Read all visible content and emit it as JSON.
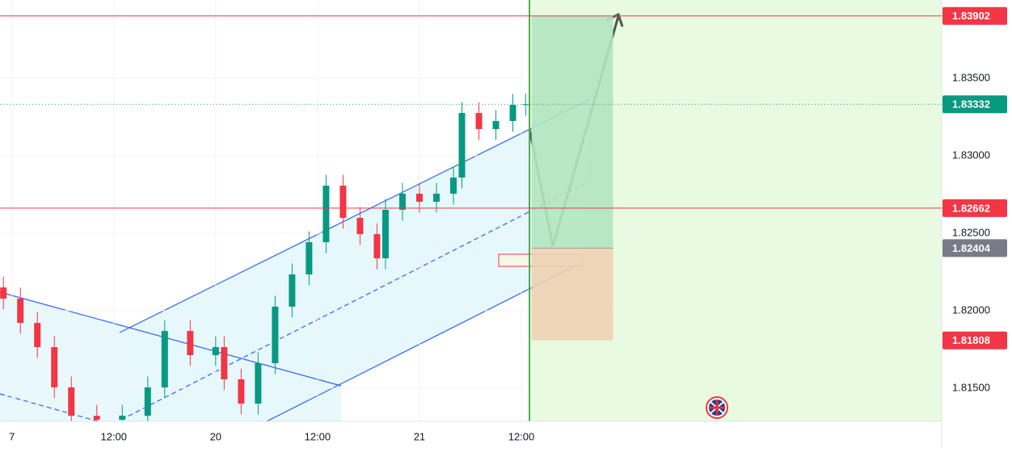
{
  "chart_data": {
    "type": "candlestick",
    "x": [
      -25,
      -23,
      -21,
      -19,
      -17,
      -14,
      -11,
      -8,
      -6,
      -3,
      0,
      1,
      3,
      5,
      7,
      9,
      11,
      13,
      15,
      17,
      19,
      20,
      22,
      24,
      26,
      28,
      29,
      31,
      33,
      35,
      36.5
    ],
    "open": [
      1.8215,
      1.82078,
      1.81921,
      1.81765,
      1.81505,
      1.81322,
      1.81296,
      1.81322,
      1.81505,
      1.81869,
      1.81713,
      1.81765,
      1.81557,
      1.814,
      1.81661,
      1.82026,
      1.82234,
      1.82442,
      1.82807,
      1.82599,
      1.82494,
      1.82338,
      1.82651,
      1.82755,
      1.82703,
      1.82755,
      1.82859,
      1.83276,
      1.83172,
      1.83224,
      1.83328
    ],
    "high": [
      1.8222,
      1.82148,
      1.81991,
      1.81835,
      1.81575,
      1.81392,
      1.81392,
      1.81575,
      1.81939,
      1.81939,
      1.81835,
      1.81835,
      1.81627,
      1.81731,
      1.82096,
      1.82304,
      1.82512,
      1.82877,
      1.82877,
      1.82669,
      1.82564,
      1.82721,
      1.82825,
      1.82825,
      1.82825,
      1.82929,
      1.83346,
      1.83346,
      1.83294,
      1.83398,
      1.83402
    ],
    "low": [
      1.82008,
      1.81851,
      1.81695,
      1.81435,
      1.81252,
      1.81226,
      1.81226,
      1.81252,
      1.81435,
      1.81643,
      1.81643,
      1.81487,
      1.8133,
      1.8133,
      1.81591,
      1.81956,
      1.82164,
      1.82372,
      1.82529,
      1.82424,
      1.82268,
      1.82268,
      1.82581,
      1.82633,
      1.82633,
      1.82685,
      1.82789,
      1.83102,
      1.83102,
      1.83154,
      1.83258
    ],
    "close": [
      1.82078,
      1.81921,
      1.81765,
      1.81505,
      1.81322,
      1.81296,
      1.81322,
      1.81505,
      1.81869,
      1.81713,
      1.81765,
      1.81557,
      1.814,
      1.81661,
      1.82026,
      1.82234,
      1.82442,
      1.82807,
      1.82599,
      1.82494,
      1.82338,
      1.82651,
      1.82755,
      1.82703,
      1.82755,
      1.82859,
      1.83276,
      1.83172,
      1.83224,
      1.83328,
      1.83332
    ],
    "up_color": "#089981",
    "down_color": "#f23645",
    "xlim": [
      -25.4,
      85.5
    ],
    "xticks": [
      {
        "value": -24,
        "label": "7"
      },
      {
        "value": -12,
        "label": "12:00"
      },
      {
        "value": 0,
        "label": "20"
      },
      {
        "value": 12,
        "label": "12:00"
      },
      {
        "value": 24,
        "label": "21"
      },
      {
        "value": 36,
        "label": "12:00"
      }
    ],
    "ylim": [
      1.81286,
      1.84005
    ],
    "yticks": [
      {
        "value": 1.815,
        "label": "1.81500"
      },
      {
        "value": 1.82,
        "label": "1.82000"
      },
      {
        "value": 1.825,
        "label": "1.82500"
      },
      {
        "value": 1.83,
        "label": "1.83000"
      },
      {
        "value": 1.835,
        "label": "1.83500"
      }
    ],
    "price_labels": [
      {
        "value": 1.83902,
        "label": "1.83902",
        "color": "#f23645",
        "line": "solid"
      },
      {
        "value": 1.83332,
        "label": "1.83332",
        "color": "#089981",
        "line": "dotted"
      },
      {
        "value": 1.82662,
        "label": "1.82662",
        "color": "#f23645",
        "line": "solid"
      },
      {
        "value": 1.82404,
        "label": "1.82404",
        "color": "#787b86",
        "line": "none"
      },
      {
        "value": 1.81808,
        "label": "1.81808",
        "color": "#f23645",
        "line": "none"
      }
    ],
    "position": {
      "target": 1.83902,
      "entry": 1.82404,
      "stop": 1.81808,
      "start_x": 37.2,
      "end_x": 46.8
    }
  }
}
